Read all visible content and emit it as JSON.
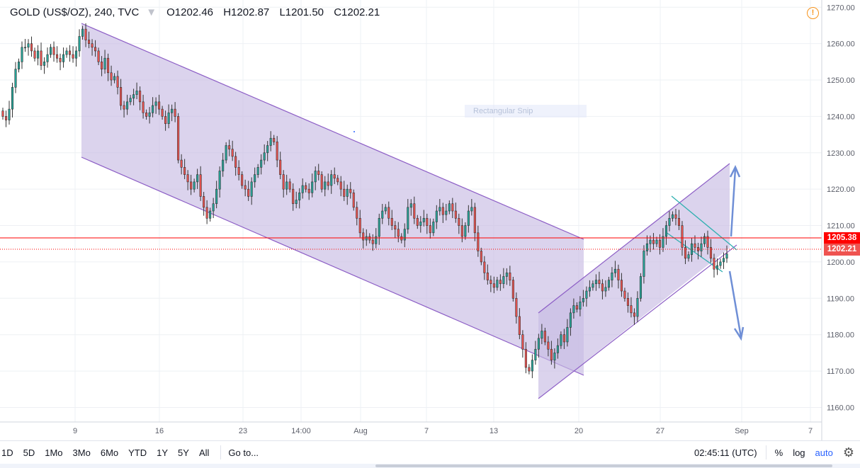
{
  "header": {
    "symbol": "GOLD (US$/OZ), 240, TVC",
    "open": "O1202.46",
    "high": "H1202.87",
    "low": "L1201.50",
    "close": "C1202.21"
  },
  "overlay": {
    "snip_label": "Rectangular Snip"
  },
  "price_tags": {
    "hline": "1205.38",
    "last": "1202.21"
  },
  "colors": {
    "up": "#26a69a",
    "down": "#ef5350",
    "band": "#c8bce3",
    "band_line": "#8d5fc6",
    "hline": "#ff0000",
    "arrow": "#6f8fd6",
    "triangle": "#2fb0b0"
  },
  "chart_data": {
    "type": "candlestick",
    "y_axis": {
      "min": 1156,
      "max": 1272,
      "ticks": [
        "1270.00",
        "1260.00",
        "1250.00",
        "1240.00",
        "1230.00",
        "1220.00",
        "1210.00",
        "1200.00",
        "1190.00",
        "1180.00",
        "1170.00",
        "1160.00"
      ]
    },
    "x_ticks": [
      "9",
      "16",
      "23",
      "14:00",
      "Aug",
      "7",
      "13",
      "20",
      "27",
      "Sep",
      "7"
    ],
    "series": [
      {
        "close": [
          1240,
          1239,
          1242,
          1248,
          1253,
          1255,
          1259,
          1259,
          1260,
          1258,
          1256,
          1258,
          1254,
          1255,
          1257,
          1259,
          1257,
          1256,
          1255,
          1257,
          1258,
          1257,
          1256,
          1258,
          1262,
          1264,
          1261,
          1260,
          1259,
          1258,
          1255,
          1253,
          1256,
          1252,
          1250,
          1251,
          1248,
          1243,
          1242,
          1244,
          1245,
          1246,
          1247,
          1244,
          1241,
          1240,
          1241,
          1243,
          1244,
          1242,
          1240,
          1238,
          1241,
          1242,
          1240,
          1228,
          1226,
          1224,
          1222,
          1220,
          1222,
          1224,
          1218,
          1215,
          1212,
          1214,
          1216,
          1220,
          1225,
          1228,
          1232,
          1231,
          1229,
          1226,
          1224,
          1221,
          1220,
          1218,
          1222,
          1224,
          1226,
          1228,
          1230,
          1232,
          1234,
          1233,
          1228,
          1224,
          1220,
          1222,
          1220,
          1216,
          1217,
          1219,
          1221,
          1220,
          1219,
          1222,
          1225,
          1224,
          1220,
          1222,
          1221,
          1224,
          1223,
          1222,
          1220,
          1218,
          1220,
          1219,
          1215,
          1212,
          1208,
          1206,
          1207,
          1206,
          1205,
          1207,
          1212,
          1214,
          1215,
          1212,
          1210,
          1209,
          1207,
          1206,
          1209,
          1215,
          1216,
          1212,
          1210,
          1211,
          1212,
          1210,
          1208,
          1211,
          1214,
          1215,
          1213,
          1214,
          1216,
          1214,
          1212,
          1210,
          1207,
          1210,
          1214,
          1215,
          1208,
          1203,
          1200,
          1197,
          1195,
          1194,
          1193,
          1195,
          1194,
          1196,
          1197,
          1195,
          1190,
          1185,
          1180,
          1176,
          1171,
          1170,
          1173,
          1176,
          1179,
          1181,
          1178,
          1176,
          1173,
          1175,
          1177,
          1180,
          1178,
          1182,
          1186,
          1188,
          1187,
          1189,
          1190,
          1192,
          1193,
          1194,
          1195,
          1194,
          1192,
          1193,
          1195,
          1197,
          1198,
          1195,
          1192,
          1190,
          1188,
          1186,
          1185,
          1190,
          1196,
          1203,
          1205,
          1206,
          1205,
          1206,
          1204,
          1207,
          1210,
          1212,
          1213,
          1212,
          1210,
          1204,
          1201,
          1202,
          1205,
          1204,
          1203,
          1205,
          1207,
          1204,
          1201,
          1198,
          1199,
          1200,
          1201,
          1202.21
        ]
      }
    ]
  }
}
